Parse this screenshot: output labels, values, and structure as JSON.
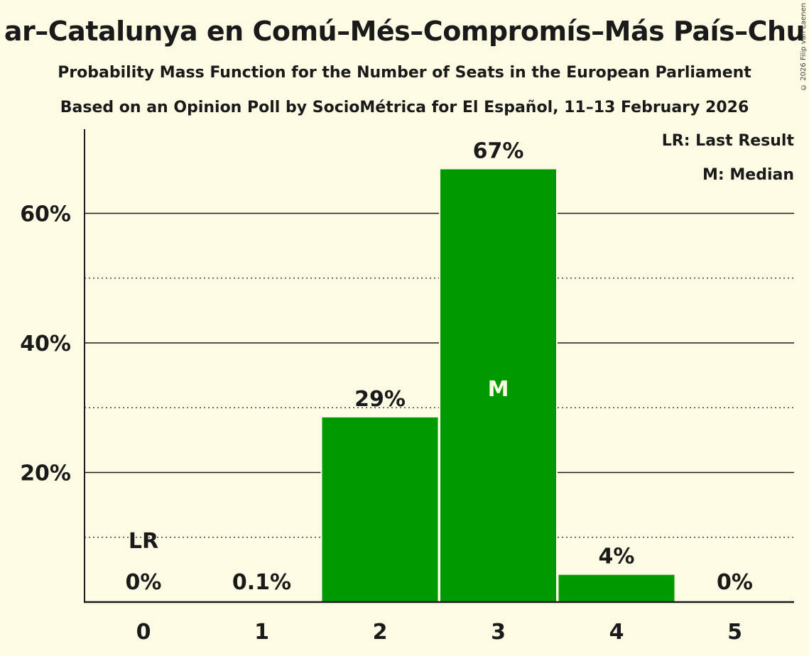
{
  "header": {
    "title": "Sumar–Catalunya en Comú–Més–Compromís–Más País–Chunta",
    "title_visible": "ar–Catalunya en Comú–Més–Compromís–Más País–Chu",
    "subtitle": "Probability Mass Function for the Number of Seats in the European Parliament",
    "source": "Based on an Opinion Poll by SocioMétrica for El Español, 11–13 February 2026"
  },
  "copyright": "© 2026 Filip van Laenen",
  "legend": {
    "lr": "LR: Last Result",
    "m": "M: Median"
  },
  "colors": {
    "background": "#fefbe4",
    "bar": "#009900",
    "text": "#1a1a1a",
    "median_label": "#fefbe4"
  },
  "chart_data": {
    "type": "bar",
    "title": "Sumar–Catalunya en Comú–Més–Compromís–Más País–Chunta",
    "subtitle": "Probability Mass Function for the Number of Seats in the European Parliament",
    "xlabel": "",
    "ylabel": "",
    "categories": [
      "0",
      "1",
      "2",
      "3",
      "4",
      "5"
    ],
    "values": [
      0,
      0.1,
      28.5,
      66.8,
      4.2,
      0
    ],
    "data_labels": [
      "0%",
      "0.1%",
      "29%",
      "67%",
      "4%",
      "0%"
    ],
    "ylim": [
      0,
      72
    ],
    "yticks": [
      20,
      40,
      60
    ],
    "ytick_labels": [
      "20%",
      "40%",
      "60%"
    ],
    "minor_gridlines": [
      10,
      30,
      50
    ],
    "grid": true,
    "last_result_category": "0",
    "median_category": "3",
    "annotations": [
      {
        "category": "0",
        "text": "LR"
      },
      {
        "category": "3",
        "text": "M"
      }
    ],
    "legend_position": "top-right"
  }
}
